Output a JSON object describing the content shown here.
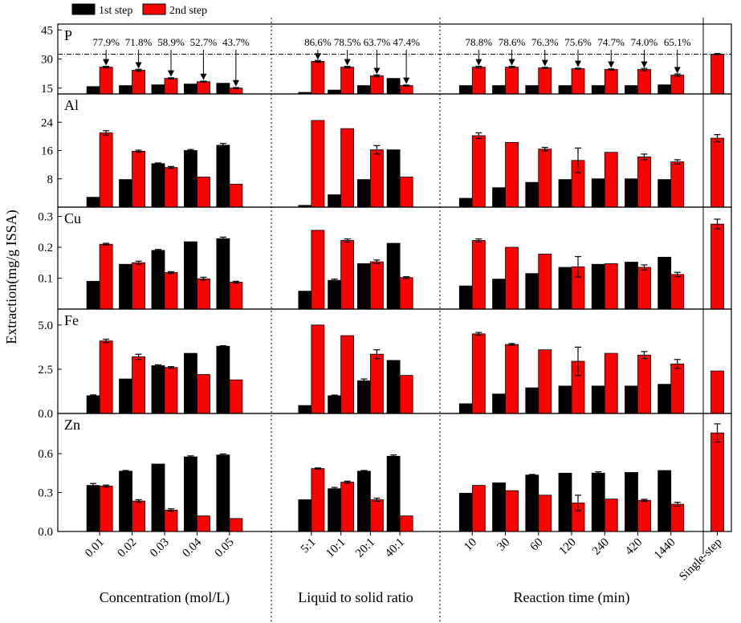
{
  "chart_data": {
    "type": "bar",
    "ylabel": "Extraction(mg/g ISSA)",
    "series": [
      {
        "name": "1st step",
        "color": "#000000"
      },
      {
        "name": "2nd step",
        "color": "#ff0000"
      }
    ],
    "groups": [
      {
        "label": "Concentration (mol/L)",
        "categories": [
          "0.01",
          "0.02",
          "0.03",
          "0.04",
          "0.05"
        ]
      },
      {
        "label": "Liquid to solid ratio",
        "categories": [
          "5:1",
          "10:1",
          "20:1",
          "40:1"
        ]
      },
      {
        "label": "Reaction time (min)",
        "categories": [
          "10",
          "30",
          "60",
          "120",
          "240",
          "420",
          "1440"
        ]
      },
      {
        "categories": [
          "Single-step"
        ]
      }
    ],
    "panels": [
      {
        "label": "P",
        "ylim": [
          12,
          48
        ],
        "yticks": [
          15,
          30,
          45
        ],
        "percent_labels": [
          "77.9%",
          "71.8%",
          "58.9%",
          "52.7%",
          "43.7%",
          "86.6%",
          "78.5%",
          "63.7%",
          "47.4%",
          "78.8%",
          "78.6%",
          "76.3%",
          "75.6%",
          "74.7%",
          "74.0%",
          "65.1%",
          null
        ],
        "series": [
          {
            "values": [
              15.8,
              16.3,
              16.7,
              17.1,
              17.5,
              12.8,
              14,
              16.3,
              20,
              16.3,
              16.3,
              16.3,
              16.3,
              16.3,
              16.3,
              16.7,
              null
            ]
          },
          {
            "values": [
              25.8,
              24.2,
              20,
              18.3,
              15,
              28.8,
              25.8,
              21.3,
              16.3,
              25.8,
              25.8,
              25.4,
              25,
              24.6,
              24.6,
              21.7,
              32.5
            ],
            "errors": [
              0.4,
              0.5,
              0.3,
              0.3,
              0.3,
              0.5,
              0.4,
              0.5,
              0.3,
              0.5,
              0.4,
              0.3,
              0.3,
              0.3,
              0.6,
              0.6,
              0.3
            ]
          }
        ]
      },
      {
        "label": "Al",
        "ylim": [
          0,
          32
        ],
        "yticks": [
          8,
          16,
          24
        ],
        "series": [
          {
            "values": [
              2.8,
              7.8,
              12.3,
              16,
              17.5,
              0.5,
              3.5,
              7.8,
              16.2,
              2.5,
              5.5,
              7,
              7.8,
              8,
              8,
              7.8,
              null
            ],
            "errors": [
              null,
              null,
              0.2,
              0.3,
              0.5,
              null,
              null,
              null,
              null,
              null,
              null,
              null,
              null,
              null,
              null,
              null,
              null
            ]
          },
          {
            "values": [
              21,
              15.8,
              11.2,
              8.5,
              6.5,
              24.5,
              22.2,
              16.2,
              8.5,
              20.2,
              18.3,
              16.4,
              13.2,
              15.5,
              14.2,
              12.8,
              19.5
            ],
            "errors": [
              0.6,
              0.3,
              0.3,
              null,
              null,
              null,
              null,
              1.2,
              null,
              0.8,
              null,
              0.5,
              3.5,
              null,
              0.8,
              0.6,
              1
            ]
          }
        ]
      },
      {
        "label": "Cu",
        "ylim": [
          0,
          0.33
        ],
        "yticks": [
          0.1,
          0.2,
          0.3
        ],
        "series": [
          {
            "values": [
              0.09,
              0.145,
              0.19,
              0.218,
              0.228,
              0.058,
              0.093,
              0.147,
              0.213,
              0.075,
              0.097,
              0.115,
              0.135,
              0.145,
              0.152,
              0.168,
              null
            ],
            "errors": [
              null,
              null,
              0.003,
              null,
              0.005,
              null,
              0.004,
              null,
              null,
              null,
              null,
              null,
              null,
              null,
              null,
              null,
              null
            ]
          },
          {
            "values": [
              0.21,
              0.15,
              0.118,
              0.098,
              0.087,
              0.255,
              0.222,
              0.153,
              0.102,
              0.222,
              0.2,
              0.178,
              0.137,
              0.147,
              0.135,
              0.112,
              0.275
            ],
            "errors": [
              0.003,
              0.005,
              0.003,
              0.005,
              0.003,
              null,
              0.005,
              0.006,
              0.003,
              0.005,
              null,
              null,
              0.033,
              null,
              0.008,
              0.007,
              0.016
            ]
          }
        ]
      },
      {
        "label": "Fe",
        "ylim": [
          0,
          5.9
        ],
        "yticks": [
          {
            "value": 0,
            "label": "0.0"
          },
          {
            "value": 2.5,
            "label": "2.5"
          },
          {
            "value": 5,
            "label": "5.0"
          }
        ],
        "series": [
          {
            "values": [
              1.0,
              1.95,
              2.7,
              3.4,
              3.8,
              0.45,
              1.0,
              1.85,
              3.0,
              0.55,
              1.1,
              1.45,
              1.55,
              1.55,
              1.55,
              1.65,
              null
            ],
            "errors": [
              0.05,
              null,
              0.05,
              null,
              0.03,
              null,
              0.04,
              0.1,
              null,
              null,
              null,
              null,
              null,
              null,
              null,
              null,
              null
            ]
          },
          {
            "values": [
              4.1,
              3.2,
              2.6,
              2.2,
              1.9,
              5.0,
              4.4,
              3.35,
              2.15,
              4.5,
              3.9,
              3.6,
              2.95,
              3.4,
              3.3,
              2.8,
              2.4
            ],
            "errors": [
              0.1,
              0.15,
              0.05,
              null,
              null,
              null,
              null,
              0.25,
              null,
              0.08,
              0.05,
              null,
              0.8,
              null,
              0.2,
              0.25,
              null
            ]
          }
        ]
      },
      {
        "label": "Zn",
        "ylim": [
          0,
          0.91
        ],
        "yticks": [
          {
            "value": 0,
            "label": "0.0"
          },
          {
            "value": 0.3,
            "label": "0.3"
          },
          {
            "value": 0.6,
            "label": "0.6"
          }
        ],
        "series": [
          {
            "values": [
              0.355,
              0.465,
              0.52,
              0.575,
              0.59,
              0.245,
              0.33,
              0.465,
              0.58,
              0.295,
              0.375,
              0.435,
              0.45,
              0.45,
              0.455,
              0.47,
              null
            ],
            "errors": [
              0.015,
              0.005,
              null,
              0.008,
              0.008,
              null,
              0.01,
              0.005,
              0.01,
              null,
              null,
              0.005,
              null,
              0.01,
              null,
              null,
              null
            ]
          },
          {
            "values": [
              0.35,
              0.235,
              0.165,
              0.12,
              0.1,
              0.485,
              0.38,
              0.245,
              0.12,
              0.355,
              0.315,
              0.28,
              0.22,
              0.25,
              0.24,
              0.21,
              0.76
            ],
            "errors": [
              0.008,
              0.01,
              0.01,
              null,
              null,
              0.005,
              0.008,
              0.012,
              null,
              null,
              null,
              null,
              0.06,
              null,
              0.008,
              0.015,
              0.07
            ]
          }
        ]
      }
    ]
  }
}
